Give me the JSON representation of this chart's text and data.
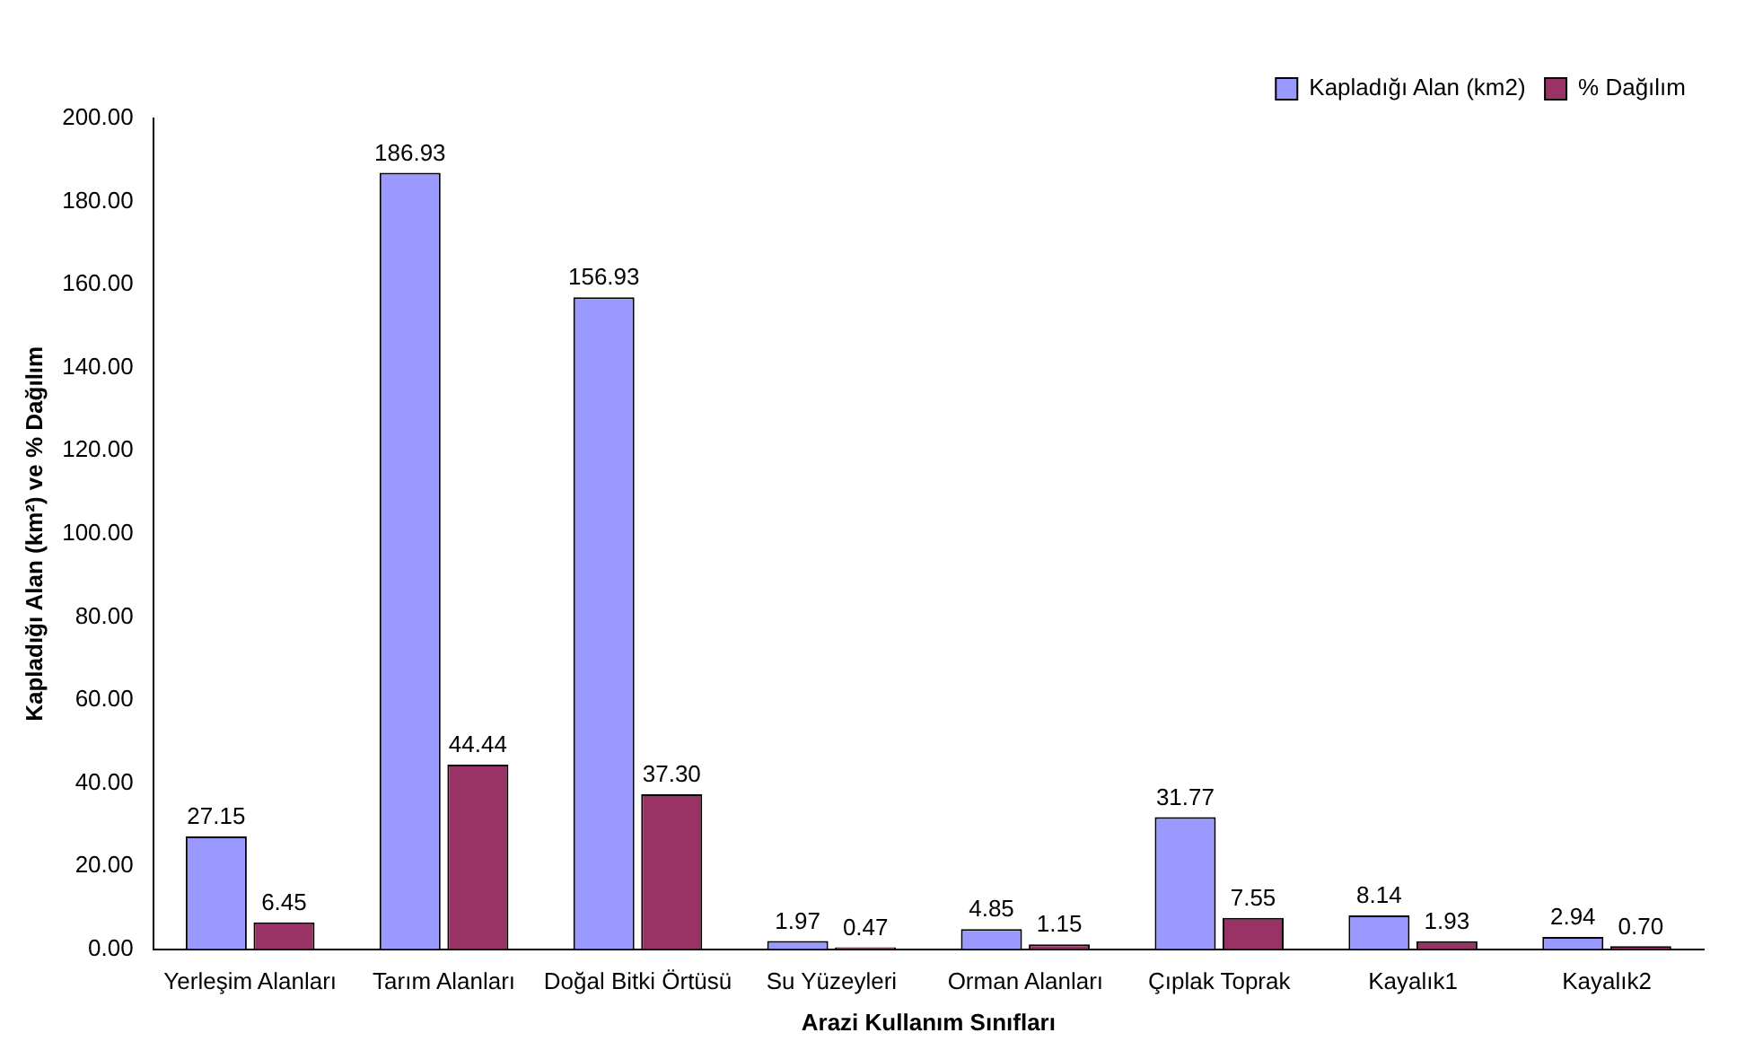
{
  "chart_data": {
    "type": "bar",
    "xlabel": "Arazi Kullanım Sınıfları",
    "ylabel": "Kapladığı Alan (km²) ve % Dağılım",
    "categories": [
      "Yerleşim Alanları",
      "Tarım Alanları",
      "Doğal Bitki Örtüsü",
      "Su Yüzeyleri",
      "Orman Alanları",
      "Çıplak Toprak",
      "Kayalık1",
      "Kayalık2"
    ],
    "series": [
      {
        "name": "Kapladığı Alan (km2)",
        "color": "#9999ff",
        "values": [
          27.15,
          186.93,
          156.93,
          1.97,
          4.85,
          31.77,
          8.14,
          2.94
        ],
        "value_labels": [
          "27.15",
          "186.93",
          "156.93",
          "1.97",
          "4.85",
          "31.77",
          "8.14",
          "2.94"
        ]
      },
      {
        "name": "% Dağılım",
        "color": "#993366",
        "values": [
          6.45,
          44.44,
          37.3,
          0.47,
          1.15,
          7.55,
          1.93,
          0.7
        ],
        "value_labels": [
          "6.45",
          "44.44",
          "37.30",
          "0.47",
          "1.15",
          "7.55",
          "1.93",
          "0.70"
        ]
      }
    ],
    "ylim": [
      0,
      200
    ],
    "yticks": [
      {
        "value": 0,
        "label": "0.00"
      },
      {
        "value": 20,
        "label": "20.00"
      },
      {
        "value": 40,
        "label": "40.00"
      },
      {
        "value": 60,
        "label": "60.00"
      },
      {
        "value": 80,
        "label": "80.00"
      },
      {
        "value": 100,
        "label": "100.00"
      },
      {
        "value": 120,
        "label": "120.00"
      },
      {
        "value": 140,
        "label": "140.00"
      },
      {
        "value": 160,
        "label": "160.00"
      },
      {
        "value": 180,
        "label": "180.00"
      },
      {
        "value": 200,
        "label": "200.00"
      }
    ],
    "legend": "top right",
    "grid": false
  }
}
